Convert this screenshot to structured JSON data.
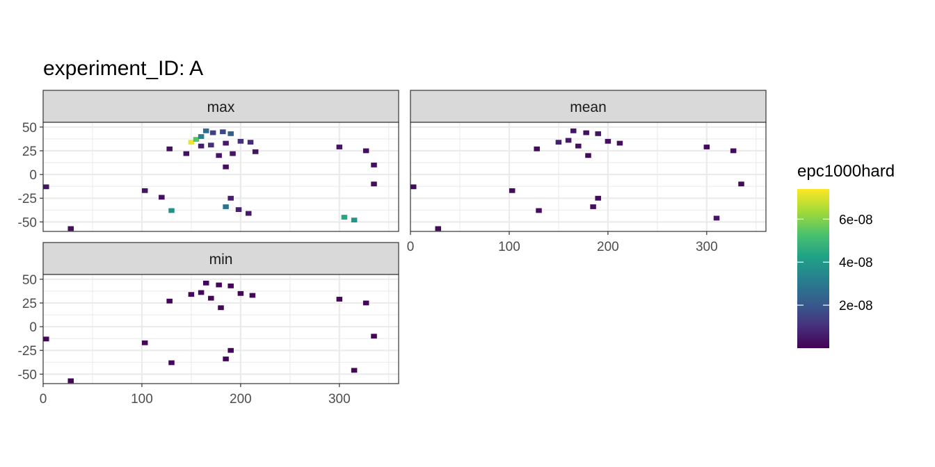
{
  "chart_data": {
    "type": "heatmap",
    "title": "experiment_ID: A",
    "xlabel": "",
    "ylabel": "",
    "xlim": [
      0,
      360
    ],
    "ylim": [
      -60,
      55
    ],
    "x_ticks": [
      0,
      100,
      200,
      300
    ],
    "y_ticks": [
      50,
      25,
      0,
      -25,
      -50
    ],
    "legend": {
      "title": "epc1000hard",
      "placement": "right",
      "range": [
        0,
        7.4e-08
      ],
      "ticks": [
        {
          "value": 2e-08,
          "label": "2e-08"
        },
        {
          "value": 4e-08,
          "label": "4e-08"
        },
        {
          "value": 6e-08,
          "label": "6e-08"
        }
      ],
      "colormap": [
        "#440154",
        "#46327e",
        "#365c8d",
        "#277f8e",
        "#1fa187",
        "#4ac16d",
        "#a0da39",
        "#fde725"
      ]
    },
    "panels": [
      {
        "facet": "max",
        "cells": [
          {
            "x": 150,
            "y": 34,
            "v": 7.2e-08
          },
          {
            "x": 155,
            "y": 37,
            "v": 5.4e-08
          },
          {
            "x": 160,
            "y": 40,
            "v": 3.2e-08
          },
          {
            "x": 165,
            "y": 46,
            "v": 2.6e-08
          },
          {
            "x": 172,
            "y": 44,
            "v": 1.4e-08
          },
          {
            "x": 182,
            "y": 45,
            "v": 1.6e-08
          },
          {
            "x": 190,
            "y": 43,
            "v": 2.2e-08
          },
          {
            "x": 160,
            "y": 30,
            "v": 6e-09
          },
          {
            "x": 170,
            "y": 31,
            "v": 1e-08
          },
          {
            "x": 185,
            "y": 33,
            "v": 5e-09
          },
          {
            "x": 200,
            "y": 35,
            "v": 1e-08
          },
          {
            "x": 210,
            "y": 34,
            "v": 9e-09
          },
          {
            "x": 215,
            "y": 24,
            "v": 4e-09
          },
          {
            "x": 128,
            "y": 27,
            "v": 3e-09
          },
          {
            "x": 145,
            "y": 22,
            "v": 3e-09
          },
          {
            "x": 178,
            "y": 20,
            "v": 4e-09
          },
          {
            "x": 185,
            "y": 8,
            "v": 3e-09
          },
          {
            "x": 192,
            "y": 22,
            "v": 4e-09
          },
          {
            "x": 300,
            "y": 29,
            "v": 4e-09
          },
          {
            "x": 327,
            "y": 25,
            "v": 3e-09
          },
          {
            "x": 335,
            "y": 10,
            "v": 3e-09
          },
          {
            "x": 335,
            "y": -10,
            "v": 3e-09
          },
          {
            "x": 3,
            "y": -13,
            "v": 4e-09
          },
          {
            "x": 103,
            "y": -17,
            "v": 4e-09
          },
          {
            "x": 120,
            "y": -24,
            "v": 3e-09
          },
          {
            "x": 190,
            "y": -25,
            "v": 6e-09
          },
          {
            "x": 185,
            "y": -34,
            "v": 2.8e-08
          },
          {
            "x": 198,
            "y": -37,
            "v": 7e-09
          },
          {
            "x": 208,
            "y": -41,
            "v": 5e-09
          },
          {
            "x": 130,
            "y": -38,
            "v": 3.8e-08
          },
          {
            "x": 305,
            "y": -45,
            "v": 4.4e-08
          },
          {
            "x": 315,
            "y": -48,
            "v": 3.9e-08
          },
          {
            "x": 28,
            "y": -57,
            "v": 3e-09
          }
        ]
      },
      {
        "facet": "mean",
        "cells": [
          {
            "x": 150,
            "y": 34,
            "v": 7e-09
          },
          {
            "x": 160,
            "y": 36,
            "v": 5e-09
          },
          {
            "x": 165,
            "y": 46,
            "v": 4e-09
          },
          {
            "x": 178,
            "y": 44,
            "v": 3e-09
          },
          {
            "x": 190,
            "y": 43,
            "v": 4e-09
          },
          {
            "x": 170,
            "y": 30,
            "v": 3e-09
          },
          {
            "x": 200,
            "y": 35,
            "v": 3e-09
          },
          {
            "x": 212,
            "y": 33,
            "v": 3e-09
          },
          {
            "x": 128,
            "y": 27,
            "v": 2e-09
          },
          {
            "x": 180,
            "y": 20,
            "v": 2e-09
          },
          {
            "x": 300,
            "y": 29,
            "v": 2e-09
          },
          {
            "x": 327,
            "y": 25,
            "v": 2e-09
          },
          {
            "x": 335,
            "y": -10,
            "v": 2e-09
          },
          {
            "x": 3,
            "y": -13,
            "v": 2e-09
          },
          {
            "x": 103,
            "y": -17,
            "v": 2e-09
          },
          {
            "x": 190,
            "y": -25,
            "v": 2e-09
          },
          {
            "x": 185,
            "y": -34,
            "v": 3e-09
          },
          {
            "x": 130,
            "y": -38,
            "v": 3e-09
          },
          {
            "x": 310,
            "y": -46,
            "v": 4e-09
          },
          {
            "x": 28,
            "y": -57,
            "v": 2e-09
          }
        ]
      },
      {
        "facet": "min",
        "cells": [
          {
            "x": 150,
            "y": 34,
            "v": 1e-09
          },
          {
            "x": 160,
            "y": 36,
            "v": 1e-09
          },
          {
            "x": 165,
            "y": 46,
            "v": 1e-09
          },
          {
            "x": 178,
            "y": 44,
            "v": 1e-09
          },
          {
            "x": 190,
            "y": 43,
            "v": 1e-09
          },
          {
            "x": 170,
            "y": 30,
            "v": 1e-09
          },
          {
            "x": 200,
            "y": 35,
            "v": 1e-09
          },
          {
            "x": 212,
            "y": 33,
            "v": 1e-09
          },
          {
            "x": 128,
            "y": 27,
            "v": 1e-09
          },
          {
            "x": 180,
            "y": 20,
            "v": 1e-09
          },
          {
            "x": 300,
            "y": 29,
            "v": 1e-09
          },
          {
            "x": 327,
            "y": 25,
            "v": 1e-09
          },
          {
            "x": 335,
            "y": -10,
            "v": 1e-09
          },
          {
            "x": 3,
            "y": -13,
            "v": 1e-09
          },
          {
            "x": 103,
            "y": -17,
            "v": 1e-09
          },
          {
            "x": 190,
            "y": -25,
            "v": 1e-09
          },
          {
            "x": 185,
            "y": -34,
            "v": 1e-09
          },
          {
            "x": 130,
            "y": -38,
            "v": 1e-09
          },
          {
            "x": 315,
            "y": -46,
            "v": 1e-09
          },
          {
            "x": 28,
            "y": -57,
            "v": 1e-09
          }
        ]
      }
    ]
  }
}
